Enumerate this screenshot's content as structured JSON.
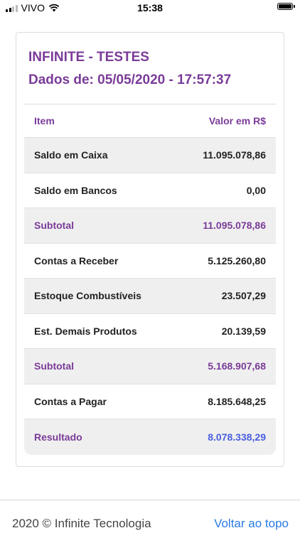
{
  "status_bar": {
    "carrier": "VIVO",
    "time": "15:38",
    "signal_bars": 2,
    "battery_level": 1.0,
    "icons": [
      "signal-icon",
      "wifi-icon",
      "battery-icon"
    ]
  },
  "card": {
    "title": "INFINITE - TESTES",
    "subtitle": "Dados de: 05/05/2020 - 17:57:37"
  },
  "table": {
    "headers": {
      "item": "Item",
      "value": "Valor em R$"
    },
    "rows": [
      {
        "label": "Saldo em Caixa",
        "value": "11.095.078,86"
      },
      {
        "label": "Saldo em Bancos",
        "value": "0,00"
      },
      {
        "label": "Subtotal",
        "value": "11.095.078,86"
      },
      {
        "label": "Contas a Receber",
        "value": "5.125.260,80"
      },
      {
        "label": "Estoque Combustíveis",
        "value": "23.507,29"
      },
      {
        "label": "Est. Demais Produtos",
        "value": "20.139,59"
      },
      {
        "label": "Subtotal",
        "value": "5.168.907,68"
      },
      {
        "label": "Contas a Pagar",
        "value": "8.185.648,25"
      },
      {
        "label": "Resultado",
        "value": "8.078.338,29"
      }
    ]
  },
  "footer": {
    "copyright": "2020 © Infinite Tecnologia",
    "back_to_top": "Voltar ao topo"
  },
  "colors": {
    "accent_purple": "#7a3b98",
    "result_blue": "#4a5ee0",
    "link_blue": "#2a7be4",
    "row_shade": "#efefef"
  }
}
